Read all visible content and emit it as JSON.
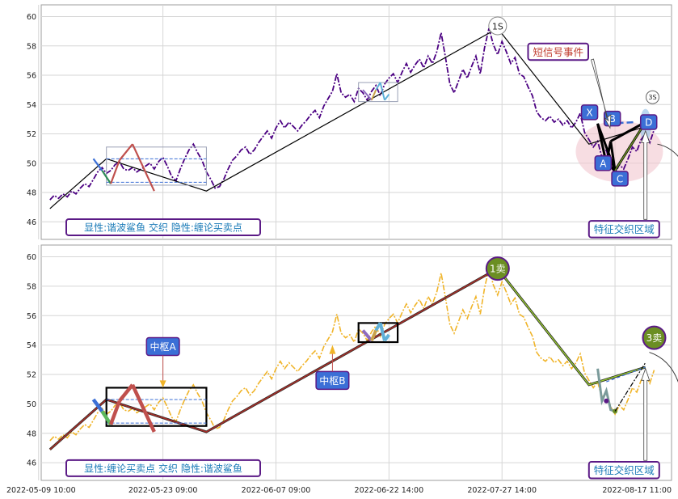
{
  "chart_data": [
    {
      "type": "line",
      "panel": "top",
      "ylim": [
        44.8,
        60.8
      ],
      "yticks": [
        46,
        48,
        50,
        52,
        54,
        56,
        58,
        60
      ],
      "xtick_labels": [
        "2022-05-09 10:00",
        "2022-05-23 09:00",
        "2022-06-07 09:00",
        "2022-06-22 14:00",
        "2022-07-27 14:00",
        "2022-08-17 11:00"
      ],
      "price_series_color": "#4b0082",
      "price_series": [
        47.5,
        47.8,
        47.6,
        47.9,
        47.7,
        48.1,
        47.9,
        48.3,
        48.6,
        48.4,
        48.9,
        49.4,
        49.7,
        49.3,
        49.5,
        49.9,
        50.1,
        49.6,
        49.5,
        49.7,
        49.4,
        49.6,
        49.8,
        50.0,
        49.6,
        50.1,
        50.4,
        49.8,
        49.1,
        48.8,
        49.6,
        50.3,
        50.9,
        51.3,
        50.7,
        50.2,
        49.4,
        48.9,
        48.3,
        48.4,
        48.9,
        49.6,
        50.2,
        50.5,
        50.9,
        51.1,
        50.6,
        50.9,
        51.4,
        51.8,
        52.2,
        51.7,
        52.4,
        52.9,
        52.4,
        52.8,
        52.5,
        52.2,
        52.6,
        52.9,
        53.3,
        53.6,
        53.1,
        53.9,
        54.4,
        54.9,
        56.1,
        54.8,
        54.5,
        54.7,
        54.2,
        55.1,
        54.8,
        54.3,
        54.9,
        55.3,
        54.6,
        55.4,
        55.8,
        56.1,
        55.5,
        56.2,
        56.8,
        56.2,
        56.7,
        57.1,
        56.5,
        57.3,
        56.8,
        57.6,
        58.9,
        57.2,
        55.4,
        54.8,
        55.6,
        56.4,
        55.8,
        56.6,
        57.3,
        56.1,
        57.9,
        59.2,
        58.1,
        57.4,
        58.3,
        57.6,
        56.8,
        57.2,
        56.1,
        55.9,
        55.2,
        54.6,
        53.5,
        53.1,
        52.9,
        53.2,
        52.8,
        53.0,
        52.6,
        52.9,
        52.4,
        52.8,
        53.4,
        52.1,
        51.6,
        51.1,
        51.5,
        50.4,
        50.9,
        49.8,
        49.3,
        49.9,
        49.6,
        50.3,
        51.1,
        50.8,
        51.6,
        52.0,
        51.4,
        52.3
      ],
      "trend_line": {
        "x": [
          0,
          13,
          36,
          103,
          124,
          137
        ],
        "y": [
          46.9,
          50.3,
          48.1,
          59.2,
          51.3,
          52.5
        ],
        "color": "#000000"
      },
      "box_a": {
        "x": [
          10,
          12,
          14,
          16,
          19
        ],
        "y": [
          50.3,
          49.5,
          48.6,
          50.2,
          51.3
        ],
        "box_from": 13,
        "box_to": 36,
        "ylo": 48.5,
        "yhi": 51.1
      },
      "box_b": {
        "x": [
          72,
          74,
          75,
          76,
          77,
          78
        ],
        "y": [
          55.0,
          54.3,
          55.0,
          55.5,
          54.3,
          54.7
        ],
        "box_from": 71,
        "box_to": 80,
        "ylo": 54.2,
        "yhi": 55.5
      },
      "xabcd": {
        "labels": [
          "X",
          "A",
          "B",
          "C",
          "D"
        ],
        "x": [
          126,
          128,
          129,
          130,
          137
        ],
        "y": [
          52.7,
          50.0,
          51.5,
          49.5,
          52.8
        ],
        "fill": "#3b6fd6"
      },
      "annotations": [
        {
          "text": "1S",
          "x": 103,
          "y": 59.2,
          "kind": "circle"
        },
        {
          "text": "3S",
          "x": 139,
          "y": 54.5,
          "kind": "circle-small"
        },
        {
          "text": "短信号事件",
          "x": 110,
          "y": 57.6,
          "kind": "box",
          "text_color": "#c0392b"
        },
        {
          "text": "特征交织区域",
          "x": 124,
          "y": 45.5,
          "kind": "box",
          "text_color": "#1a7bb8"
        },
        {
          "text": "显性:谐波鲨鱼 交织 隐性:缠论买卖点",
          "x": 0,
          "y": 45.3,
          "kind": "legend",
          "text_color": "#1a7bb8"
        }
      ]
    },
    {
      "type": "line",
      "panel": "bottom",
      "ylim": [
        44.8,
        60.8
      ],
      "yticks": [
        46,
        48,
        50,
        52,
        54,
        56,
        58,
        60
      ],
      "xtick_labels": [
        "2022-05-09 10:00",
        "2022-05-23 09:00",
        "2022-06-07 09:00",
        "2022-06-22 14:00",
        "2022-07-27 14:00",
        "2022-08-17 11:00"
      ],
      "price_series_color": "#f0b429",
      "trend_line_color": "#556b2f",
      "box_color": "#000000",
      "annotations": [
        {
          "text": "1卖",
          "x": 103,
          "y": 59.2,
          "kind": "marker",
          "fill": "#6b8e23"
        },
        {
          "text": "3卖",
          "x": 139,
          "y": 54.5,
          "kind": "marker",
          "fill": "#6b8e23"
        },
        {
          "text": "中枢A",
          "x": 26,
          "y": 53.9,
          "kind": "label",
          "fill": "#3b6fd6"
        },
        {
          "text": "中枢B",
          "x": 65,
          "y": 51.6,
          "kind": "label",
          "fill": "#3b6fd6"
        },
        {
          "text": "特征交织区域",
          "x": 124,
          "y": 45.5,
          "kind": "box",
          "text_color": "#1a7bb8"
        },
        {
          "text": "显性:缠论买卖点 交织 隐性:谐波鲨鱼",
          "x": 0,
          "y": 45.3,
          "kind": "legend",
          "text_color": "#1a7bb8"
        }
      ]
    }
  ]
}
